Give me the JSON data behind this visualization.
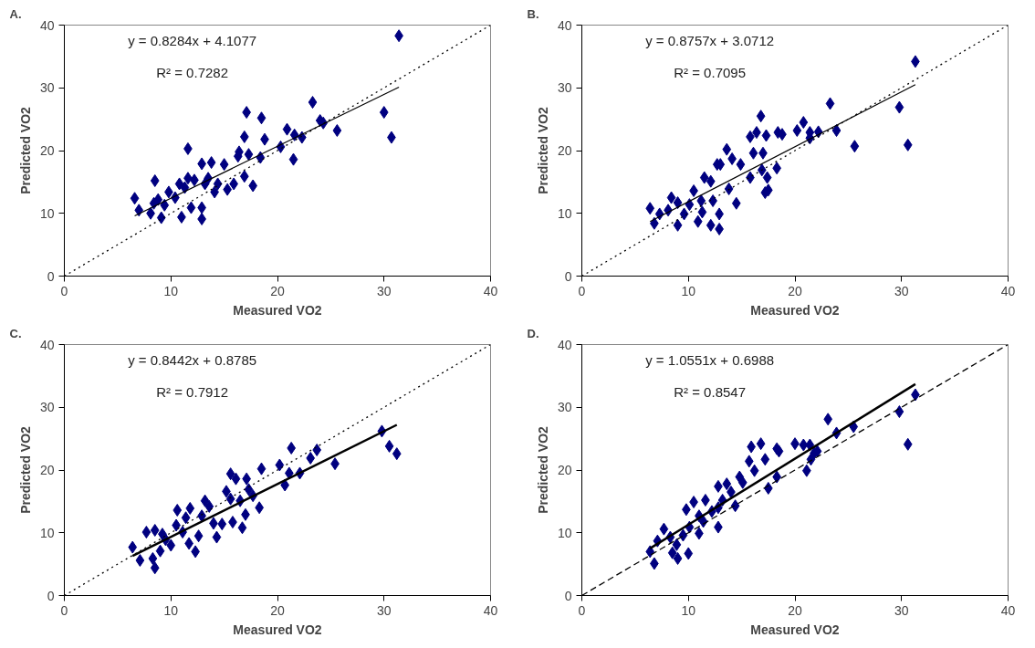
{
  "chart_data": [
    {
      "type": "scatter",
      "title": "A.",
      "xlabel": "Measured VO2",
      "ylabel": "Predicted VO2",
      "xlim": [
        0,
        40
      ],
      "ylim": [
        0,
        40
      ],
      "xticks": [
        0,
        10,
        20,
        30,
        40
      ],
      "yticks": [
        0,
        10,
        20,
        30,
        40
      ],
      "grid": false,
      "annotations": [
        "y = 0.8284x + 4.1077",
        "R² = 0.7282"
      ],
      "series": [
        {
          "marker": "diamond",
          "color": "#000080",
          "x": [
            31.4,
            30.0,
            30.7,
            23.3,
            24.0,
            24.3,
            25.6,
            20.9,
            21.6,
            22.3,
            21.5,
            20.3,
            17.1,
            18.5,
            16.9,
            18.8,
            18.4,
            16.4,
            17.3,
            11.6,
            8.5,
            6.6,
            7.0,
            8.1,
            8.8,
            9.1,
            9.8,
            11.0,
            10.8,
            11.9,
            12.9,
            12.9,
            12.9,
            13.8,
            13.2,
            14.1,
            15.0,
            15.3,
            15.9,
            16.9,
            17.7,
            11.6,
            12.2,
            10.4,
            9.4,
            13.5,
            16.3,
            14.4,
            8.4,
            11.3
          ],
          "values": [
            38.3,
            26.1,
            22.1,
            27.7,
            24.8,
            24.4,
            23.2,
            23.4,
            22.5,
            22.1,
            18.6,
            20.6,
            26.1,
            25.2,
            22.2,
            21.8,
            18.9,
            19.8,
            19.4,
            20.3,
            15.2,
            12.4,
            10.5,
            10.0,
            12.2,
            9.3,
            13.4,
            9.4,
            14.7,
            10.9,
            9.1,
            10.9,
            17.9,
            18.1,
            14.7,
            13.4,
            17.8,
            13.8,
            14.7,
            15.9,
            14.4,
            15.6,
            15.3,
            12.5,
            11.3,
            15.6,
            19.1,
            14.7,
            11.6,
            14.1
          ]
        },
        {
          "type": "line",
          "color": "#000000",
          "line_style": "solid",
          "x": [
            6.6,
            31.4
          ],
          "values": [
            9.6,
            30.1
          ]
        },
        {
          "type": "line",
          "color": "#000000",
          "line_style": "dotted",
          "x": [
            0,
            40
          ],
          "values": [
            0,
            40
          ]
        }
      ]
    },
    {
      "type": "scatter",
      "title": "B.",
      "xlabel": "Measured VO2",
      "ylabel": "Predicted VO2",
      "xlim": [
        0,
        40
      ],
      "ylim": [
        0,
        40
      ],
      "xticks": [
        0,
        10,
        20,
        30,
        40
      ],
      "yticks": [
        0,
        10,
        20,
        30,
        40
      ],
      "grid": false,
      "annotations": [
        "y = 0.8757x + 3.0712",
        "R² = 0.7095"
      ],
      "series": [
        {
          "marker": "diamond",
          "color": "#000080",
          "x": [
            31.3,
            29.8,
            30.6,
            23.3,
            23.9,
            25.6,
            20.8,
            20.2,
            21.4,
            22.2,
            21.4,
            16.8,
            15.8,
            16.4,
            17.3,
            18.4,
            18.8,
            16.1,
            17.0,
            18.3,
            13.6,
            14.1,
            14.9,
            13.0,
            12.7,
            15.8,
            16.9,
            17.4,
            17.2,
            17.5,
            13.8,
            14.5,
            11.5,
            12.1,
            10.5,
            11.2,
            12.3,
            12.9,
            12.9,
            12.1,
            10.9,
            11.3,
            6.4,
            6.8,
            7.3,
            8.4,
            9.0,
            9.0,
            9.6,
            10.1,
            8.1
          ],
          "values": [
            34.2,
            26.9,
            20.9,
            27.5,
            23.2,
            20.7,
            24.5,
            23.2,
            22.9,
            23.0,
            22.0,
            25.5,
            22.2,
            22.9,
            22.4,
            22.9,
            22.6,
            19.6,
            19.6,
            17.2,
            20.2,
            18.7,
            17.8,
            17.8,
            17.8,
            15.7,
            16.9,
            15.7,
            13.3,
            13.7,
            13.9,
            11.6,
            15.7,
            15.1,
            13.6,
            12.0,
            12.0,
            9.9,
            7.5,
            8.1,
            8.7,
            10.2,
            10.8,
            8.4,
            9.9,
            12.5,
            11.7,
            8.1,
            9.9,
            11.4,
            10.5
          ]
        },
        {
          "type": "line",
          "color": "#000000",
          "line_style": "solid",
          "x": [
            6.4,
            31.3
          ],
          "values": [
            8.7,
            30.5
          ]
        },
        {
          "type": "line",
          "color": "#000000",
          "line_style": "dotted",
          "x": [
            0,
            40
          ],
          "values": [
            0,
            40
          ]
        }
      ]
    },
    {
      "type": "scatter",
      "title": "C.",
      "xlabel": "Measured VO2",
      "ylabel": "Predicted VO2",
      "xlim": [
        0,
        40
      ],
      "ylim": [
        0,
        40
      ],
      "xticks": [
        0,
        10,
        20,
        30,
        40
      ],
      "yticks": [
        0,
        10,
        20,
        30,
        40
      ],
      "grid": false,
      "annotations": [
        "y = 0.8442x + 0.8785",
        "R² = 0.7912"
      ],
      "series": [
        {
          "marker": "diamond",
          "color": "#000080",
          "x": [
            29.8,
            30.5,
            31.2,
            21.3,
            23.7,
            23.1,
            25.4,
            20.2,
            21.1,
            22.1,
            20.7,
            18.5,
            15.6,
            16.1,
            17.1,
            17.3,
            15.2,
            15.6,
            16.5,
            17.7,
            18.3,
            17.0,
            16.7,
            15.8,
            14.8,
            14.0,
            14.3,
            13.2,
            13.6,
            12.9,
            10.6,
            11.8,
            11.4,
            10.5,
            11.1,
            11.7,
            12.3,
            12.6,
            7.7,
            8.5,
            9.2,
            10.0,
            6.4,
            7.1,
            8.3,
            8.5,
            9.0,
            9.5
          ],
          "values": [
            26.2,
            23.8,
            22.6,
            23.5,
            23.2,
            21.9,
            21.0,
            20.8,
            19.5,
            19.5,
            17.6,
            20.2,
            19.4,
            18.6,
            18.6,
            16.9,
            16.6,
            15.4,
            15.1,
            15.9,
            14.0,
            12.9,
            10.8,
            11.7,
            11.4,
            11.5,
            9.3,
            15.1,
            14.2,
            12.7,
            13.6,
            13.9,
            12.4,
            11.2,
            10.1,
            8.3,
            7.0,
            9.5,
            10.1,
            10.4,
            9.8,
            8.0,
            7.7,
            5.6,
            5.9,
            4.4,
            7.1,
            8.9
          ]
        },
        {
          "type": "line",
          "color": "#000000",
          "line_style": "solid",
          "x": [
            6.4,
            31.2
          ],
          "values": [
            6.3,
            27.2
          ]
        },
        {
          "type": "line",
          "color": "#000000",
          "line_style": "dotted",
          "x": [
            0,
            40
          ],
          "values": [
            0,
            40
          ]
        }
      ]
    },
    {
      "type": "scatter",
      "title": "D.",
      "xlabel": "Measured VO2",
      "ylabel": "Predicted VO2",
      "xlim": [
        0,
        40
      ],
      "ylim": [
        0,
        40
      ],
      "xticks": [
        0,
        10,
        20,
        30,
        40
      ],
      "yticks": [
        0,
        10,
        20,
        30,
        40
      ],
      "grid": false,
      "annotations": [
        "y = 1.0551x + 0.6988",
        "R² = 0.8547"
      ],
      "series": [
        {
          "marker": "diamond",
          "color": "#000080",
          "x": [
            31.3,
            29.8,
            30.6,
            23.1,
            23.9,
            25.5,
            20.0,
            20.8,
            21.4,
            21.8,
            22.1,
            21.5,
            21.1,
            15.9,
            16.8,
            17.2,
            18.3,
            18.5,
            15.7,
            16.2,
            17.5,
            18.3,
            14.8,
            15.1,
            13.6,
            12.8,
            14.0,
            14.4,
            13.2,
            12.8,
            12.8,
            11.6,
            10.5,
            9.8,
            11.0,
            11.4,
            10.1,
            11.0,
            7.7,
            7.1,
            8.3,
            8.9,
            8.5,
            9.0,
            10.0,
            6.4,
            6.8,
            9.5,
            12.2
          ],
          "values": [
            32.0,
            29.3,
            24.1,
            28.1,
            25.9,
            26.9,
            24.2,
            24.0,
            24.0,
            22.7,
            23.0,
            21.7,
            19.9,
            23.7,
            24.2,
            21.7,
            23.4,
            23.0,
            21.4,
            19.9,
            17.1,
            18.9,
            18.9,
            18.0,
            17.8,
            17.4,
            16.5,
            14.3,
            15.2,
            14.0,
            10.9,
            15.2,
            14.9,
            13.7,
            12.7,
            11.8,
            10.9,
            9.9,
            10.6,
            8.7,
            9.3,
            8.1,
            6.8,
            5.9,
            6.7,
            7.0,
            5.1,
            9.6,
            13.4
          ]
        },
        {
          "type": "line",
          "color": "#000000",
          "line_style": "solid",
          "x": [
            6.4,
            31.3
          ],
          "values": [
            7.5,
            33.7
          ]
        },
        {
          "type": "line",
          "color": "#000000",
          "line_style": "dashed",
          "x": [
            0,
            40
          ],
          "values": [
            0,
            40
          ]
        }
      ]
    }
  ]
}
